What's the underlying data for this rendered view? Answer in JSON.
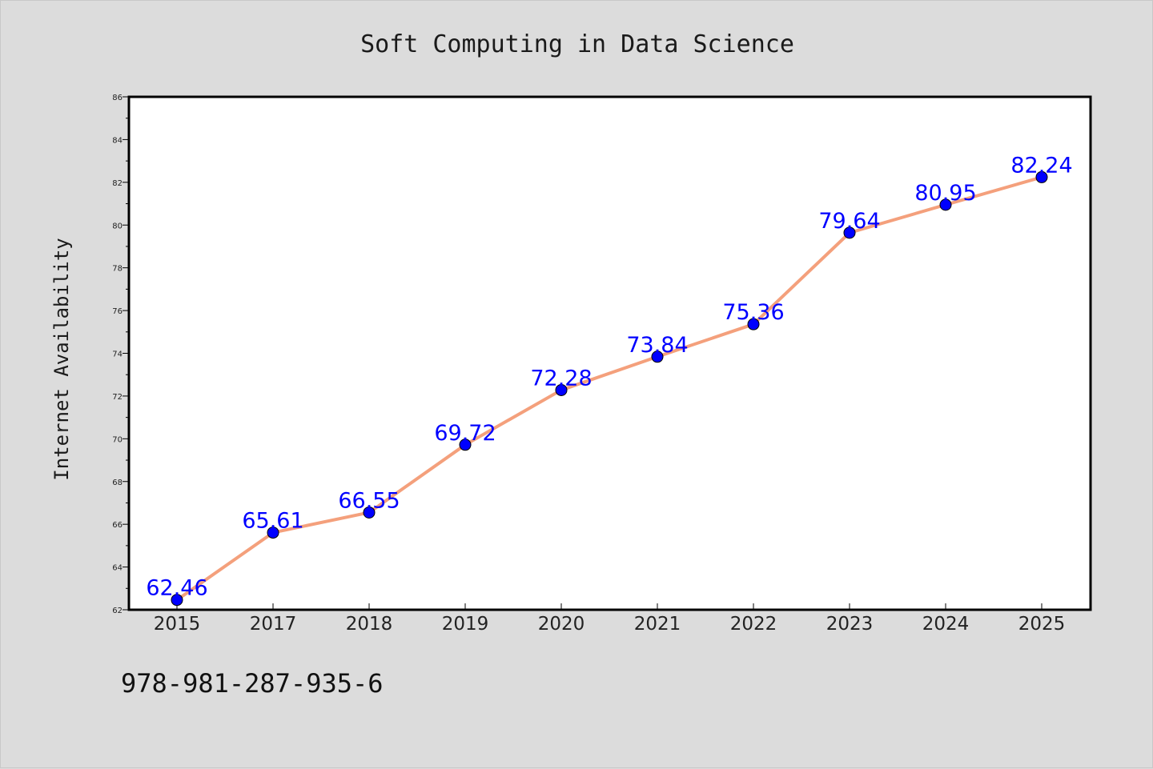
{
  "chart_data": {
    "type": "line",
    "title": "Soft Computing in Data Science",
    "ylabel": "Internet Availability",
    "xlabel": "",
    "categories": [
      "2015",
      "2017",
      "2018",
      "2019",
      "2020",
      "2021",
      "2022",
      "2023",
      "2024",
      "2025"
    ],
    "series": [
      {
        "values": [
          62.46,
          65.61,
          66.55,
          69.72,
          72.28,
          73.84,
          75.36,
          79.64,
          80.95,
          82.24
        ],
        "labels": [
          "62.46",
          "65.61",
          "66.55",
          "69.72",
          "72.28",
          "73.84",
          "75.36",
          "79.64",
          "80.95",
          "82.24"
        ],
        "line_color": "#f4a07c",
        "marker_color": "#0000ff"
      }
    ],
    "ylim": [
      62,
      86
    ],
    "yticks": [
      "62",
      "64",
      "66",
      "68",
      "70",
      "72",
      "74",
      "76",
      "78",
      "80",
      "82",
      "84",
      "86"
    ],
    "grid": false,
    "legend": "none"
  },
  "footer_text": "978-981-287-935-6"
}
